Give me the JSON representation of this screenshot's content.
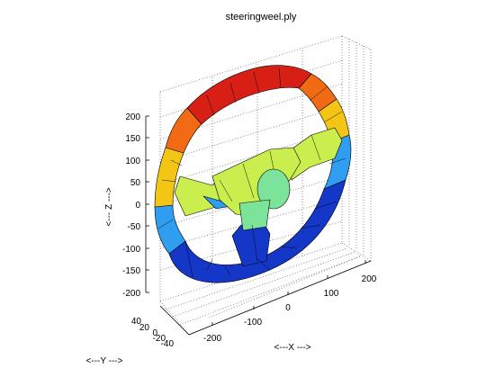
{
  "figure": {
    "title": "steeringweel.ply",
    "axes": {
      "z_label": "<--- Z --->",
      "x_label": "<---X --->",
      "y_label": "<---Y --->",
      "z_ticks": [
        "200",
        "150",
        "100",
        "50",
        "0",
        "-50",
        "-100",
        "-150",
        "-200"
      ],
      "x_ticks": [
        "-200",
        "-100",
        "0",
        "100",
        "200"
      ],
      "y_ticks": [
        "40",
        "20",
        "0",
        "-20",
        "-40"
      ]
    },
    "colormap": "jet",
    "colors": {
      "rim_top": "#d81f16",
      "rim_upper": "#f26b14",
      "rim_side": "#f3c514",
      "spoke": "#c9ee4d",
      "hub": "#7ce49a",
      "rim_lower": "#2f9df0",
      "rim_bottom": "#1437c8",
      "grid": "#777777",
      "mesh_edge": "#000000"
    }
  }
}
